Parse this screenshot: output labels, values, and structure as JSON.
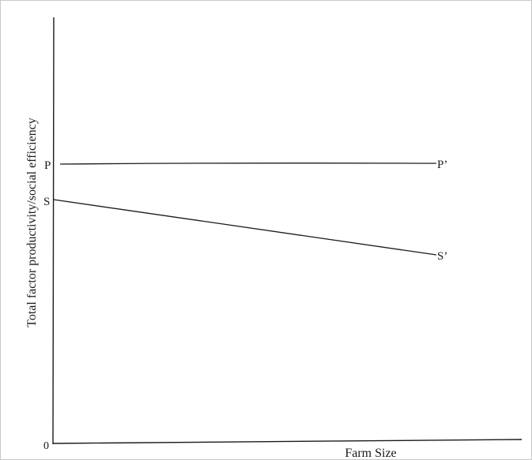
{
  "axes": {
    "y_label": "Total factor productivity/social efficiency",
    "x_label": "Farm Size",
    "origin": "0"
  },
  "curves": {
    "productivity": {
      "start_label": "P",
      "end_label": "P’"
    },
    "social_efficiency": {
      "start_label": "S",
      "end_label": "S’"
    }
  },
  "colors": {
    "ink": "#1a1a1a",
    "border": "#c8c8c8"
  }
}
